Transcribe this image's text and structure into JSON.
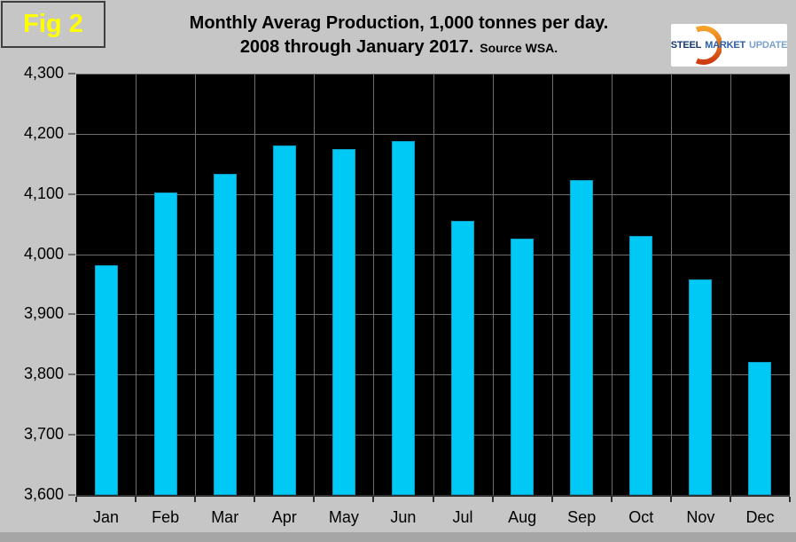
{
  "fig_label": "Fig 2",
  "title": {
    "line1": "Monthly Averag Production, 1,000 tonnes per day.",
    "line2": "2008 through January 2017.",
    "source": "Source WSA."
  },
  "logo": {
    "steel": "STEEL",
    "market": "MARKET",
    "update": "UPDATE"
  },
  "colors": {
    "page_bg": "#c6c6c6",
    "bottom_strip": "#a6a6a6",
    "fig_border": "#3f3f3f",
    "fig_label": "#ffff00",
    "plot_bg": "#000000",
    "grid": "#6e6e6e",
    "bar": "#00c9f5",
    "bar_border": "#0a9cc4",
    "axis": "#303030",
    "logo_steel": "#16386e",
    "logo_market": "#2b5ea8",
    "logo_update": "#7ba0cc",
    "logo_arc_top": "#f7a12b",
    "logo_arc_bottom": "#ce3b10"
  },
  "chart_data": {
    "type": "bar",
    "title": "Monthly Averag Production, 1,000 tonnes per day. 2008 through January 2017. Source WSA.",
    "categories": [
      "Jan",
      "Feb",
      "Mar",
      "Apr",
      "May",
      "Jun",
      "Jul",
      "Aug",
      "Sep",
      "Oct",
      "Nov",
      "Dec"
    ],
    "values": [
      3981,
      4103,
      4134,
      4180,
      4175,
      4188,
      4056,
      4026,
      4123,
      4031,
      3958,
      3821
    ],
    "ylim": [
      3600,
      4300
    ],
    "ytick_step": 100,
    "ytick_labels": [
      "3,600",
      "3,700",
      "3,800",
      "3,900",
      "4,000",
      "4,100",
      "4,200",
      "4,300"
    ],
    "xlabel": "",
    "ylabel": "",
    "grid": true,
    "legend_position": "none",
    "plot_background": "black",
    "units": "1,000 tonnes per day"
  }
}
